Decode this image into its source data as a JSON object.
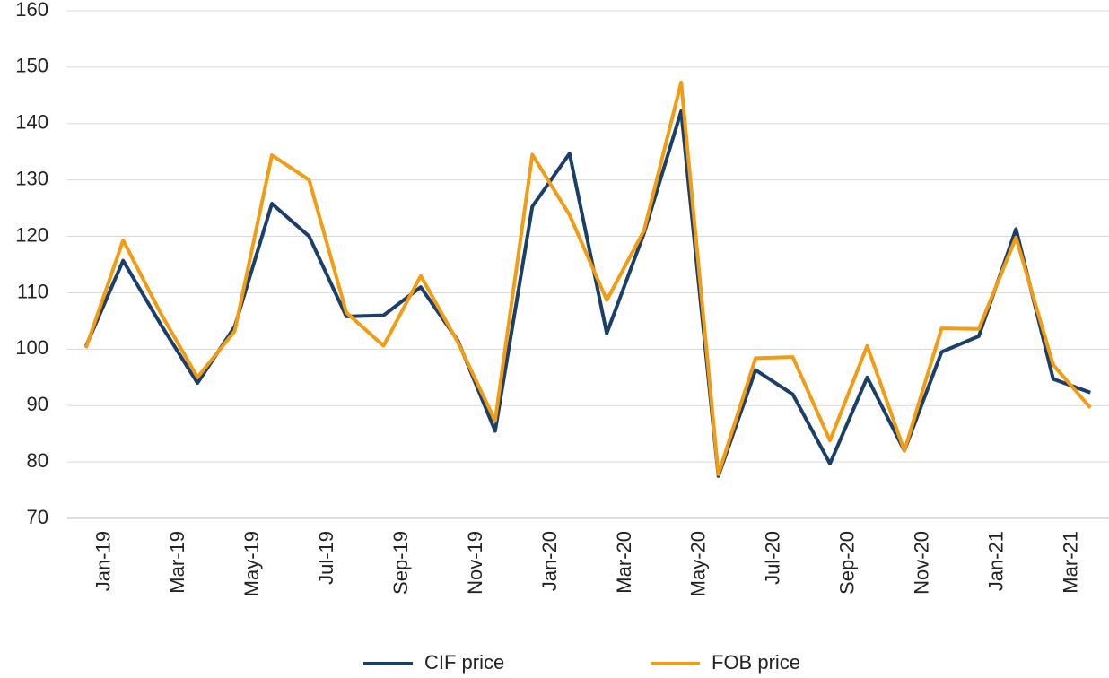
{
  "chart_data": {
    "type": "line",
    "categories": [
      "Jan-19",
      null,
      "Mar-19",
      null,
      "May-19",
      null,
      "Jul-19",
      null,
      "Sep-19",
      null,
      "Nov-19",
      null,
      "Jan-20",
      null,
      "Mar-20",
      null,
      "May-20",
      null,
      "Jul-20",
      null,
      "Sep-20",
      null,
      "Nov-20",
      null,
      "Jan-21",
      null,
      "Mar-21",
      null
    ],
    "series": [
      {
        "name": "CIF price",
        "color": "#1b3f6b",
        "values": [
          100.5,
          115.7,
          104.5,
          94,
          104,
          125.8,
          120,
          105.8,
          106,
          111,
          101.5,
          85.5,
          125.3,
          134.7,
          102.8,
          120.5,
          142.2,
          77.5,
          96.3,
          92,
          79.7,
          95,
          82,
          99.5,
          102.3,
          121.3,
          94.7,
          92.3
        ]
      },
      {
        "name": "FOB price",
        "color": "#f39c12",
        "values": [
          100.2,
          119.3,
          106.5,
          95,
          103.2,
          134.4,
          130,
          106.5,
          100.6,
          113,
          101.2,
          87.3,
          134.5,
          123.8,
          108.7,
          121,
          147.3,
          77.8,
          98.4,
          98.6,
          83.8,
          100.6,
          82,
          103.7,
          103.6,
          119.8,
          97.2,
          89.6
        ]
      }
    ],
    "ylim": [
      70,
      160
    ],
    "yticks": [
      70,
      80,
      90,
      100,
      110,
      120,
      130,
      140,
      150,
      160
    ],
    "grid": true,
    "legend": "bottom"
  }
}
